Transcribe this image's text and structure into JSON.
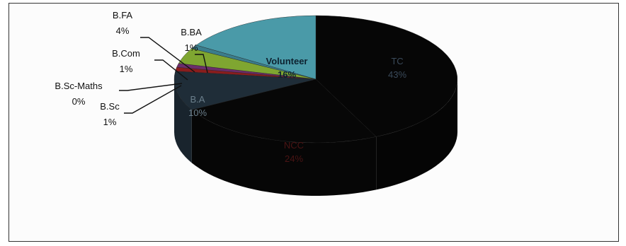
{
  "chart_data": {
    "type": "pie",
    "style": "3d",
    "legend": "none",
    "series": [
      {
        "slices": [
          {
            "label": "TC",
            "percent_label": "43%",
            "value": 43,
            "color": "#060606",
            "text_color": "#3a4a5a",
            "placement": "inside"
          },
          {
            "label": "NCC",
            "percent_label": "24%",
            "value": 24,
            "color": "#070707",
            "text_color": "#4a1414",
            "placement": "inside"
          },
          {
            "label": "B.A",
            "percent_label": "10%",
            "value": 10,
            "color": "#1f2d38",
            "text_color": "#6b7f8c",
            "placement": "inside"
          },
          {
            "label": "B.Sc",
            "percent_label": "1%",
            "value": 1,
            "color": "#8a1d1d",
            "placement": "outside"
          },
          {
            "label": "B.Sc-Maths",
            "percent_label": "0%",
            "value": 0,
            "color": "#5a1a1a",
            "placement": "outside"
          },
          {
            "label": "B.Com",
            "percent_label": "1%",
            "value": 1,
            "color": "#6b2d6b",
            "placement": "outside"
          },
          {
            "label": "B.FA",
            "percent_label": "4%",
            "value": 4,
            "color": "#7fa631",
            "placement": "outside"
          },
          {
            "label": "B.BA",
            "percent_label": "1%",
            "value": 1,
            "color": "#3b7d8c",
            "placement": "outside"
          },
          {
            "label": "Volunteer",
            "percent_label": "16%",
            "value": 16,
            "color": "#4a9aa8",
            "text_color": "#0d2230",
            "placement": "inside"
          }
        ]
      }
    ]
  }
}
